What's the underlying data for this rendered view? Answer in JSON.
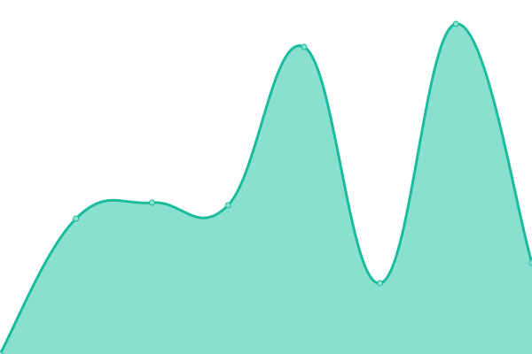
{
  "chart_data": {
    "type": "area",
    "title": "",
    "xlabel": "",
    "ylabel": "",
    "x": [
      0,
      1,
      2,
      3,
      4,
      5,
      6,
      7
    ],
    "values": [
      0,
      153,
      171,
      168,
      347,
      80,
      373,
      103
    ],
    "ylim": [
      0,
      400
    ],
    "grid": false,
    "axes_visible": false,
    "legend": "none",
    "smooth": true,
    "colors": {
      "line": "#1abc9c",
      "fill": "#8ae0cf",
      "point_fill": "#8ae0cf",
      "point_stroke": "#1abc9c"
    }
  }
}
